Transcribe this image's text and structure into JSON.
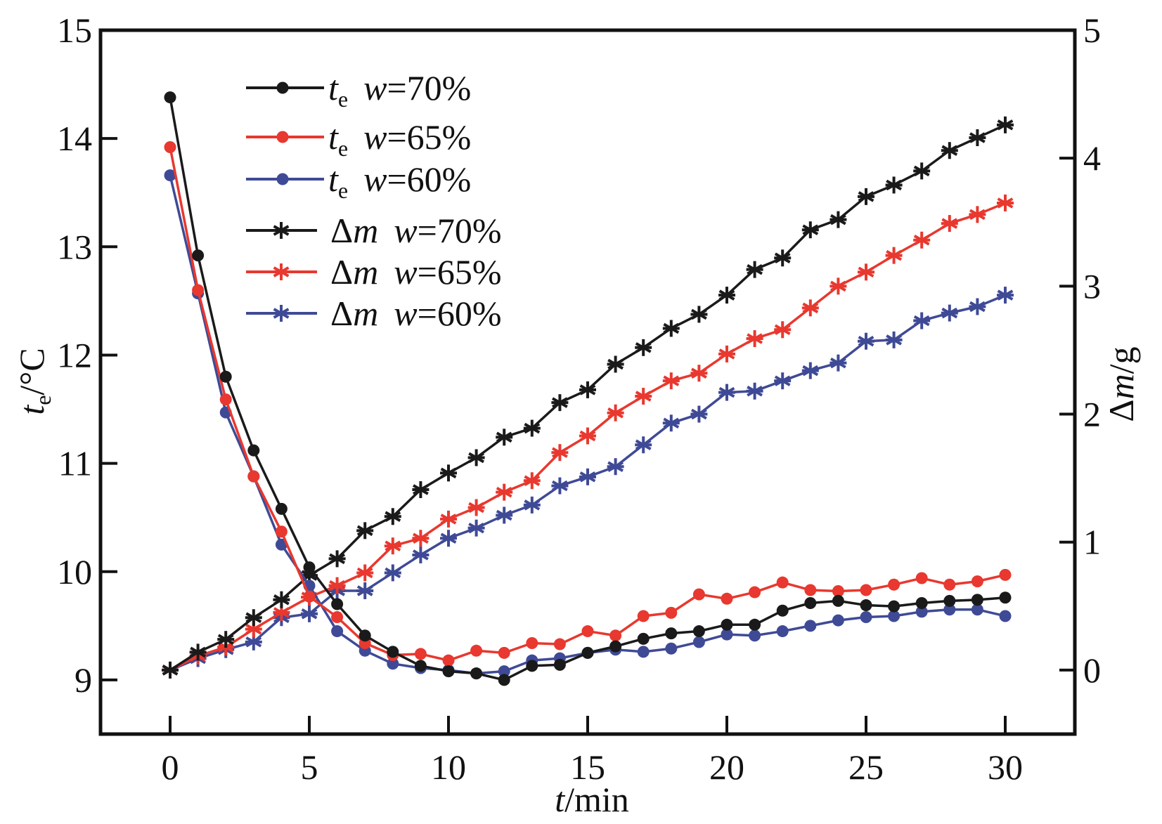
{
  "chart_data": {
    "type": "line",
    "title": "",
    "xlabel": {
      "italic": "t",
      "rest": "/min"
    },
    "ylabel_left": {
      "italic": "t",
      "sub": "e",
      "rest": "/°C"
    },
    "ylabel_right": {
      "delta": "Δ",
      "italic": "m",
      "rest": "/g"
    },
    "xlim": [
      -2.5,
      32.5
    ],
    "ylim_left": [
      8.5,
      15
    ],
    "ylim_right": [
      -0.5,
      5
    ],
    "x_ticks": [
      0,
      5,
      10,
      15,
      20,
      25,
      30
    ],
    "x_tick_labels": [
      "0",
      "5",
      "10",
      "15",
      "20",
      "25",
      "30"
    ],
    "y_left_ticks": [
      9,
      10,
      11,
      12,
      13,
      14,
      15
    ],
    "y_left_tick_labels": [
      "9",
      "10",
      "11",
      "12",
      "13",
      "14",
      "15"
    ],
    "y_right_ticks": [
      0,
      1,
      2,
      3,
      4,
      5
    ],
    "y_right_tick_labels": [
      "0",
      "1",
      "2",
      "3",
      "4",
      "5"
    ],
    "grid": false,
    "legend_position": "top-left",
    "x": [
      0,
      1,
      2,
      3,
      4,
      5,
      6,
      7,
      8,
      9,
      10,
      11,
      12,
      13,
      14,
      15,
      16,
      17,
      18,
      19,
      20,
      21,
      22,
      23,
      24,
      25,
      26,
      27,
      28,
      29,
      30
    ],
    "series": [
      {
        "name": "te w=70%",
        "var": "te",
        "w": "w=70%",
        "axis": "left",
        "marker": "circle",
        "color": "#1a1a1a",
        "values": [
          14.38,
          12.92,
          11.8,
          11.12,
          10.58,
          10.04,
          9.7,
          9.41,
          9.26,
          9.13,
          9.08,
          9.06,
          9.0,
          9.13,
          9.14,
          9.25,
          9.31,
          9.38,
          9.43,
          9.45,
          9.51,
          9.51,
          9.64,
          9.71,
          9.73,
          9.69,
          9.68,
          9.71,
          9.73,
          9.74,
          9.76
        ]
      },
      {
        "name": "te w=65%",
        "var": "te",
        "w": "w=65%",
        "axis": "left",
        "marker": "circle",
        "color": "#e8382f",
        "values": [
          13.92,
          12.6,
          11.59,
          10.88,
          10.37,
          9.77,
          9.58,
          9.34,
          9.23,
          9.24,
          9.18,
          9.27,
          9.25,
          9.34,
          9.33,
          9.45,
          9.41,
          9.59,
          9.62,
          9.79,
          9.75,
          9.81,
          9.9,
          9.83,
          9.82,
          9.83,
          9.88,
          9.94,
          9.88,
          9.91,
          9.97
        ]
      },
      {
        "name": "te w=60%",
        "var": "te",
        "w": "w=60%",
        "axis": "left",
        "marker": "circle",
        "color": "#3f4a96",
        "values": [
          13.66,
          12.57,
          11.47,
          10.88,
          10.25,
          9.87,
          9.45,
          9.27,
          9.15,
          9.11,
          9.09,
          9.06,
          9.08,
          9.18,
          9.2,
          9.25,
          9.28,
          9.26,
          9.29,
          9.35,
          9.42,
          9.41,
          9.45,
          9.5,
          9.55,
          9.58,
          9.59,
          9.63,
          9.65,
          9.65,
          9.59
        ]
      },
      {
        "name": "Δm w=70%",
        "var": "dm",
        "w": "w=70%",
        "axis": "right",
        "marker": "star",
        "color": "#1a1a1a",
        "values": [
          0,
          0.14,
          0.24,
          0.41,
          0.55,
          0.74,
          0.87,
          1.09,
          1.2,
          1.41,
          1.54,
          1.66,
          1.82,
          1.89,
          2.09,
          2.19,
          2.39,
          2.52,
          2.67,
          2.78,
          2.93,
          3.13,
          3.22,
          3.44,
          3.52,
          3.7,
          3.79,
          3.9,
          4.06,
          4.16,
          4.26
        ]
      },
      {
        "name": "Δm w=65%",
        "var": "dm",
        "w": "w=65%",
        "axis": "right",
        "marker": "star",
        "color": "#e8382f",
        "values": [
          0,
          0.11,
          0.18,
          0.32,
          0.45,
          0.57,
          0.66,
          0.76,
          0.97,
          1.03,
          1.18,
          1.27,
          1.39,
          1.48,
          1.7,
          1.83,
          2.01,
          2.14,
          2.26,
          2.32,
          2.47,
          2.59,
          2.66,
          2.83,
          3.0,
          3.11,
          3.24,
          3.36,
          3.49,
          3.56,
          3.65
        ]
      },
      {
        "name": "Δm w=60%",
        "var": "dm",
        "w": "w=60%",
        "axis": "right",
        "marker": "star",
        "color": "#3f4a96",
        "values": [
          0,
          0.09,
          0.16,
          0.22,
          0.41,
          0.44,
          0.62,
          0.62,
          0.76,
          0.9,
          1.03,
          1.11,
          1.21,
          1.29,
          1.44,
          1.51,
          1.59,
          1.76,
          1.93,
          2.0,
          2.17,
          2.18,
          2.26,
          2.34,
          2.4,
          2.57,
          2.58,
          2.73,
          2.79,
          2.84,
          2.93
        ]
      }
    ],
    "legend": [
      {
        "sym": "t",
        "sub": "e",
        "label": "w",
        "rest": "=70%",
        "series": 0
      },
      {
        "sym": "t",
        "sub": "e",
        "label": "w",
        "rest": "=65%",
        "series": 1
      },
      {
        "sym": "t",
        "sub": "e",
        "label": "w",
        "rest": "=60%",
        "series": 2
      },
      {
        "sym": "Δ",
        "sym2": "m",
        "label": "w",
        "rest": "=70%",
        "series": 3
      },
      {
        "sym": "Δ",
        "sym2": "m",
        "label": "w",
        "rest": "=65%",
        "series": 4
      },
      {
        "sym": "Δ",
        "sym2": "m",
        "label": "w",
        "rest": "=60%",
        "series": 5
      }
    ]
  }
}
